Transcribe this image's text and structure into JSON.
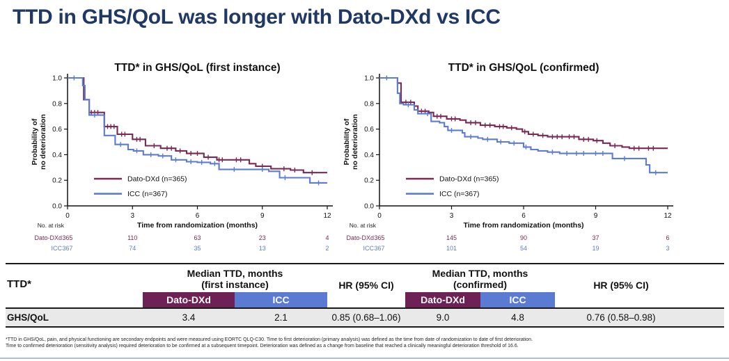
{
  "slide": {
    "title": "TTD in GHS/QoL was longer with Dato-DXd vs ICC"
  },
  "colors": {
    "title_navy": "#1F3864",
    "dato_curve": "#7B2852",
    "icc_curve": "#5B7BD5",
    "table_dato_bg": "#6E2154",
    "table_icc_bg": "#5B7BD3"
  },
  "chart_data": [
    {
      "type": "line",
      "subtype": "kaplan-meier-step",
      "title": "TTD* in GHS/QoL (first instance)",
      "xlabel": "Time from randomization (months)",
      "ylabel": [
        "Probability of",
        "no deterioration"
      ],
      "xlim": [
        0,
        12
      ],
      "ylim": [
        0.0,
        1.0
      ],
      "xticks": [
        0,
        3,
        6,
        9,
        12
      ],
      "yticks": [
        0.0,
        0.2,
        0.4,
        0.6,
        0.8,
        1.0
      ],
      "grid": false,
      "legend_position": "lower-left-inside",
      "at_risk_label": "No. at risk",
      "series": [
        {
          "name": "Dato-DXd (n=365)",
          "short": "Dato-DXd",
          "color": "#7B2852",
          "steps": [
            [
              0,
              1.0
            ],
            [
              0.75,
              0.83
            ],
            [
              1.0,
              0.73
            ],
            [
              1.7,
              0.62
            ],
            [
              2.3,
              0.56
            ],
            [
              3.0,
              0.52
            ],
            [
              3.6,
              0.47
            ],
            [
              4.3,
              0.45
            ],
            [
              5.0,
              0.43
            ],
            [
              5.5,
              0.41
            ],
            [
              6.3,
              0.38
            ],
            [
              6.9,
              0.36
            ],
            [
              8.4,
              0.33
            ],
            [
              8.7,
              0.31
            ],
            [
              9.4,
              0.29
            ],
            [
              10.3,
              0.28
            ],
            [
              10.9,
              0.26
            ]
          ],
          "censors": [
            1.1,
            1.25,
            1.4,
            1.85,
            2.0,
            2.15,
            2.5,
            2.65,
            3.2,
            3.35,
            4.0,
            4.6,
            4.8,
            5.2,
            5.7,
            6.0,
            6.5,
            7.0,
            7.15,
            7.8,
            8.0,
            9.0,
            10.0,
            10.5,
            11.3
          ],
          "at_risk": [
            365,
            110,
            63,
            23,
            4
          ]
        },
        {
          "name": "ICC (n=367)",
          "short": "ICC",
          "color": "#5B7BD5",
          "steps": [
            [
              0,
              1.0
            ],
            [
              0.7,
              0.94
            ],
            [
              0.8,
              0.83
            ],
            [
              1.0,
              0.71
            ],
            [
              1.7,
              0.55
            ],
            [
              2.2,
              0.48
            ],
            [
              2.8,
              0.44
            ],
            [
              3.05,
              0.43
            ],
            [
              3.5,
              0.4
            ],
            [
              4.2,
              0.39
            ],
            [
              4.8,
              0.36
            ],
            [
              5.5,
              0.345
            ],
            [
              6.0,
              0.34
            ],
            [
              6.6,
              0.33
            ],
            [
              7.0,
              0.285
            ],
            [
              9.3,
              0.27
            ],
            [
              9.8,
              0.22
            ],
            [
              11.2,
              0.18
            ]
          ],
          "censors": [
            0.3,
            1.25,
            2.45,
            3.2,
            3.85,
            4.4,
            5.0,
            5.7,
            6.2,
            6.8,
            7.7,
            9.0,
            10.05,
            11.6
          ],
          "at_risk": [
            367,
            74,
            35,
            13,
            2
          ]
        }
      ]
    },
    {
      "type": "line",
      "subtype": "kaplan-meier-step",
      "title": "TTD* in GHS/QoL (confirmed)",
      "xlabel": "Time from randomization (months)",
      "ylabel": [
        "Probability of",
        "no deterioration"
      ],
      "xlim": [
        0,
        12
      ],
      "ylim": [
        0.0,
        1.0
      ],
      "xticks": [
        0,
        3,
        6,
        9,
        12
      ],
      "yticks": [
        0.0,
        0.2,
        0.4,
        0.6,
        0.8,
        1.0
      ],
      "grid": false,
      "legend_position": "lower-left-inside",
      "at_risk_label": "No. at risk",
      "series": [
        {
          "name": "Dato-DXd (n=365)",
          "short": "Dato-DXd",
          "color": "#7B2852",
          "steps": [
            [
              0,
              1.0
            ],
            [
              0.75,
              0.96
            ],
            [
              0.9,
              0.81
            ],
            [
              1.45,
              0.78
            ],
            [
              1.6,
              0.74
            ],
            [
              2.05,
              0.73
            ],
            [
              2.25,
              0.7
            ],
            [
              2.8,
              0.68
            ],
            [
              3.35,
              0.67
            ],
            [
              3.6,
              0.65
            ],
            [
              4.2,
              0.63
            ],
            [
              4.8,
              0.62
            ],
            [
              5.3,
              0.61
            ],
            [
              5.7,
              0.6
            ],
            [
              5.95,
              0.58
            ],
            [
              6.2,
              0.56
            ],
            [
              6.6,
              0.55
            ],
            [
              7.0,
              0.54
            ],
            [
              8.3,
              0.52
            ],
            [
              8.9,
              0.51
            ],
            [
              9.3,
              0.49
            ],
            [
              9.6,
              0.47
            ],
            [
              10.1,
              0.46
            ],
            [
              10.4,
              0.45
            ]
          ],
          "censors": [
            1.1,
            1.3,
            1.75,
            1.9,
            2.4,
            2.55,
            3.0,
            3.15,
            3.8,
            4.0,
            4.4,
            4.6,
            5.0,
            5.15,
            5.5,
            6.05,
            6.4,
            6.8,
            7.2,
            7.4,
            7.6,
            7.9,
            8.1,
            8.5,
            8.7,
            9.05,
            9.8,
            10.6,
            10.8,
            11.2,
            11.4
          ],
          "at_risk": [
            365,
            145,
            90,
            37,
            6
          ]
        },
        {
          "name": "ICC (n=367)",
          "short": "ICC",
          "color": "#5B7BD5",
          "steps": [
            [
              0,
              1.0
            ],
            [
              0.75,
              0.88
            ],
            [
              0.85,
              0.8
            ],
            [
              1.0,
              0.79
            ],
            [
              1.45,
              0.75
            ],
            [
              1.6,
              0.72
            ],
            [
              2.15,
              0.66
            ],
            [
              2.5,
              0.65
            ],
            [
              2.7,
              0.62
            ],
            [
              2.85,
              0.59
            ],
            [
              3.45,
              0.57
            ],
            [
              3.55,
              0.54
            ],
            [
              4.1,
              0.53
            ],
            [
              4.3,
              0.52
            ],
            [
              4.9,
              0.5
            ],
            [
              5.4,
              0.49
            ],
            [
              6.0,
              0.46
            ],
            [
              6.3,
              0.44
            ],
            [
              6.6,
              0.43
            ],
            [
              7.0,
              0.42
            ],
            [
              7.5,
              0.41
            ],
            [
              9.7,
              0.37
            ],
            [
              11.1,
              0.32
            ],
            [
              11.25,
              0.26
            ]
          ],
          "censors": [
            0.3,
            1.2,
            2.0,
            3.0,
            3.8,
            4.5,
            5.05,
            5.6,
            6.1,
            7.2,
            7.8,
            8.2,
            8.5,
            9.0,
            9.3,
            10.2,
            11.5
          ],
          "at_risk": [
            367,
            101,
            54,
            19,
            3
          ]
        }
      ]
    }
  ],
  "table": {
    "col1_header": "TTD*",
    "groups": [
      {
        "line1": "Median TTD, months",
        "line2": "(first instance)",
        "sub": [
          "Dato-DXd",
          "ICC"
        ]
      },
      {
        "header": "HR (95% CI)"
      },
      {
        "line1": "Median TTD, months",
        "line2": "(confirmed)",
        "sub": [
          "Dato-DXd",
          "ICC"
        ]
      },
      {
        "header": "HR (95% CI)"
      }
    ],
    "row": {
      "label": "GHS/QoL",
      "values": [
        "3.4",
        "2.1",
        "0.85 (0.68–1.06)",
        "9.0",
        "4.8",
        "0.76 (0.58–0.98)"
      ]
    }
  },
  "footnotes": {
    "line1": "*TTD in GHS/QoL, pain, and physical functioning are secondary endpoints and were measured using EORTC QLQ-C30. Time to first deterioration (primary analysis) was defined as the time from date of randomization to date of first deterioration.",
    "line2": "Time to confirmed deterioration (sensitivity analysis) required deterioration to be confirmed at a subsequent timepoint. Deterioration was defined as a change from baseline that reached a clinically meaningful deterioration threshold of 16.6."
  }
}
